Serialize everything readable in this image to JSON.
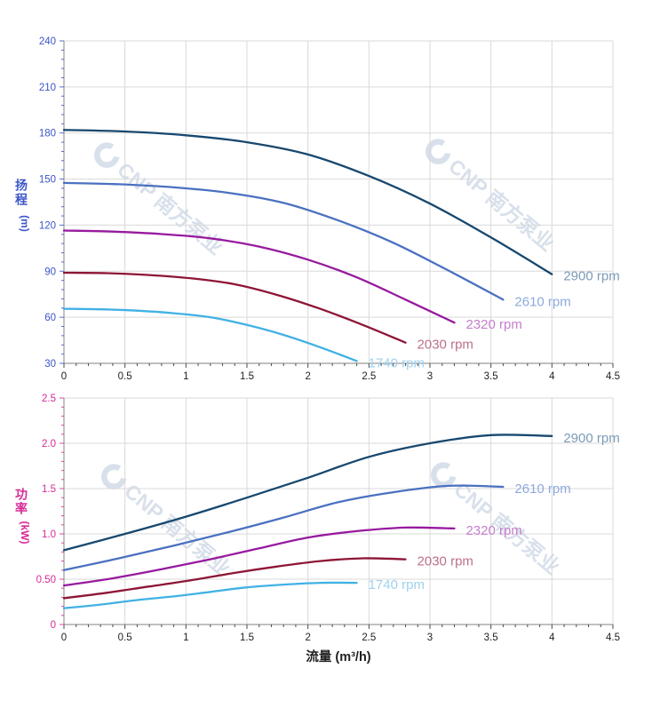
{
  "watermark": {
    "text": "CNP 南方泵业",
    "color": "#a9bcd4",
    "opacity": 0.45
  },
  "chart_data": [
    {
      "type": "line",
      "name": "head-curve-chart",
      "title": "",
      "xlabel": "",
      "ylabel": "扬程",
      "ylabel_unit": "(m)",
      "axis_text_color": "#3c55c8",
      "grid": true,
      "xlim": [
        0,
        4.5
      ],
      "ylim": [
        30,
        240
      ],
      "x_major": 0.5,
      "x_minor": 0.1,
      "y_major": 30,
      "y_minor": 6,
      "x_tick_labels": [
        "0",
        "0.5",
        "1",
        "1.5",
        "2",
        "2.5",
        "3",
        "3.5",
        "4",
        "4.5"
      ],
      "y_tick_labels": [
        "30",
        "60",
        "90",
        "120",
        "150",
        "180",
        "210",
        "240"
      ],
      "legend_position": "end-of-line-labels",
      "series": [
        {
          "name": "2900 rpm",
          "color": "#17486f",
          "label_color": "#7d9ab8",
          "x": [
            0,
            0.5,
            1.0,
            1.5,
            2.0,
            2.5,
            3.0,
            3.5,
            4.0
          ],
          "y": [
            182,
            181,
            178.5,
            174,
            166,
            152,
            134,
            112,
            88
          ]
        },
        {
          "name": "2610 rpm",
          "color": "#4a71c0",
          "label_color": "#8ea9dc",
          "x": [
            0,
            0.45,
            0.9,
            1.35,
            1.8,
            2.25,
            2.7,
            3.15,
            3.6
          ],
          "y": [
            147.5,
            146.6,
            144.6,
            141,
            134.5,
            123,
            108.5,
            90.5,
            71.5
          ]
        },
        {
          "name": "2320 rpm",
          "color": "#971a9e",
          "label_color": "#c47fcb",
          "x": [
            0,
            0.4,
            0.8,
            1.2,
            1.6,
            2.0,
            2.4,
            2.8,
            3.2
          ],
          "y": [
            116.5,
            115.8,
            114.2,
            111.4,
            106,
            97.5,
            86,
            71.5,
            56.5
          ]
        },
        {
          "name": "2030 rpm",
          "color": "#8e1535",
          "label_color": "#bb7186",
          "x": [
            0,
            0.35,
            0.7,
            1.05,
            1.4,
            1.75,
            2.1,
            2.45,
            2.8
          ],
          "y": [
            89,
            88.7,
            87.5,
            85.3,
            81.5,
            74.5,
            65.5,
            55,
            43.5
          ]
        },
        {
          "name": "1740 rpm",
          "color": "#41b1e4",
          "label_color": "#9fd2ee",
          "x": [
            0,
            0.3,
            0.6,
            0.9,
            1.2,
            1.5,
            1.8,
            2.1,
            2.4
          ],
          "y": [
            65.5,
            65.2,
            64.3,
            62.6,
            60,
            55,
            48.5,
            40.5,
            31.5
          ]
        }
      ]
    },
    {
      "type": "line",
      "name": "power-curve-chart",
      "title": "",
      "xlabel": "流量 (m³/h)",
      "ylabel": "功率",
      "ylabel_unit": "(kW)",
      "axis_text_color": "#d62a96",
      "grid": true,
      "xlim": [
        0,
        4.5
      ],
      "ylim": [
        0,
        2.5
      ],
      "x_major": 0.5,
      "x_minor": 0.1,
      "y_major": 0.5,
      "y_minor": 0.1,
      "x_tick_labels": [
        "0",
        "0.5",
        "1",
        "1.5",
        "2",
        "2.5",
        "3",
        "3.5",
        "4",
        "4.5"
      ],
      "y_tick_labels": [
        "0",
        "0.50",
        "1.0",
        "1.5",
        "2.0",
        "2.5"
      ],
      "legend_position": "end-of-line-labels",
      "series": [
        {
          "name": "2900 rpm",
          "color": "#17486f",
          "label_color": "#7d9ab8",
          "x": [
            0,
            0.5,
            1.0,
            1.5,
            2.0,
            2.5,
            3.0,
            3.5,
            4.0
          ],
          "y": [
            0.82,
            1.0,
            1.19,
            1.4,
            1.62,
            1.85,
            2.0,
            2.09,
            2.08
          ]
        },
        {
          "name": "2610 rpm",
          "color": "#4a71c0",
          "label_color": "#8ea9dc",
          "x": [
            0,
            0.45,
            0.9,
            1.35,
            1.8,
            2.25,
            2.7,
            3.15,
            3.6
          ],
          "y": [
            0.6,
            0.73,
            0.87,
            1.02,
            1.18,
            1.35,
            1.46,
            1.53,
            1.52
          ]
        },
        {
          "name": "2320 rpm",
          "color": "#971a9e",
          "label_color": "#c47fcb",
          "x": [
            0,
            0.4,
            0.8,
            1.2,
            1.6,
            2.0,
            2.4,
            2.8,
            3.2
          ],
          "y": [
            0.43,
            0.51,
            0.61,
            0.72,
            0.84,
            0.96,
            1.03,
            1.07,
            1.06
          ]
        },
        {
          "name": "2030 rpm",
          "color": "#8e1535",
          "label_color": "#bb7186",
          "x": [
            0,
            0.35,
            0.7,
            1.05,
            1.4,
            1.75,
            2.1,
            2.45,
            2.8
          ],
          "y": [
            0.29,
            0.35,
            0.42,
            0.49,
            0.57,
            0.64,
            0.7,
            0.73,
            0.72
          ]
        },
        {
          "name": "1740 rpm",
          "color": "#41b1e4",
          "label_color": "#9fd2ee",
          "x": [
            0,
            0.3,
            0.6,
            0.9,
            1.2,
            1.5,
            1.8,
            2.1,
            2.4
          ],
          "y": [
            0.18,
            0.22,
            0.27,
            0.31,
            0.36,
            0.41,
            0.44,
            0.46,
            0.46
          ]
        }
      ]
    }
  ]
}
